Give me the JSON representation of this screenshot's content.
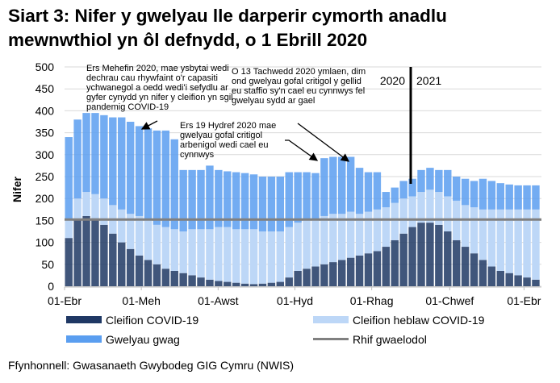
{
  "title": [
    "Siart 3: Nifer y gwelyau lle darperir cymorth anadlu",
    "mewnwthiol yn ôl defnydd, o 1 Ebrill 2020"
  ],
  "source": "Ffynhonnell: Gwasanaeth Gwybodeg GIG Cymru (NWIS)",
  "chart_data": {
    "type": "bar",
    "stacked": true,
    "ylabel": "Nifer",
    "ylim": [
      0,
      500
    ],
    "yticks": [
      0,
      50,
      100,
      150,
      200,
      250,
      300,
      350,
      400,
      450,
      500
    ],
    "grid": true,
    "xtick_labels": [
      {
        "date": "2020-04-01",
        "label": "01-Ebr"
      },
      {
        "date": "2020-06-01",
        "label": "01-Meh"
      },
      {
        "date": "2020-08-01",
        "label": "01-Awst"
      },
      {
        "date": "2020-10-01",
        "label": "01-Hyd"
      },
      {
        "date": "2020-12-01",
        "label": "01-Rhag"
      },
      {
        "date": "2021-02-01",
        "label": "01-Chwef"
      },
      {
        "date": "2021-04-01",
        "label": "01-Ebr"
      }
    ],
    "legend_position": "bottom",
    "series": [
      {
        "name": "Cleifion COVID-19",
        "color": "#1f3864"
      },
      {
        "name": "Cleifion heblaw COVID-19",
        "color": "#bdd7f7"
      },
      {
        "name": "Gwelyau gwag",
        "color": "#5a9ef0"
      }
    ],
    "baseline": {
      "name": "Rhif gwaelodol",
      "value": 152,
      "color": "#808080"
    },
    "year_divider": {
      "date": "2021-01-01",
      "left_label": "2020",
      "right_label": "2021"
    },
    "dates": [
      "2020-04-01",
      "2020-04-08",
      "2020-04-15",
      "2020-04-22",
      "2020-04-29",
      "2020-05-06",
      "2020-05-13",
      "2020-05-20",
      "2020-05-27",
      "2020-06-03",
      "2020-06-10",
      "2020-06-17",
      "2020-06-24",
      "2020-07-01",
      "2020-07-08",
      "2020-07-15",
      "2020-07-22",
      "2020-07-29",
      "2020-08-05",
      "2020-08-12",
      "2020-08-19",
      "2020-08-26",
      "2020-09-02",
      "2020-09-09",
      "2020-09-16",
      "2020-09-23",
      "2020-09-30",
      "2020-10-07",
      "2020-10-14",
      "2020-10-21",
      "2020-10-28",
      "2020-11-04",
      "2020-11-11",
      "2020-11-18",
      "2020-11-25",
      "2020-12-02",
      "2020-12-09",
      "2020-12-16",
      "2020-12-23",
      "2020-12-30",
      "2021-01-06",
      "2021-01-13",
      "2021-01-20",
      "2021-01-27",
      "2021-02-03",
      "2021-02-10",
      "2021-02-17",
      "2021-02-24",
      "2021-03-03",
      "2021-03-10",
      "2021-03-17",
      "2021-03-24",
      "2021-03-31",
      "2021-04-07"
    ],
    "covid": [
      110,
      150,
      160,
      155,
      140,
      120,
      100,
      85,
      70,
      60,
      50,
      40,
      35,
      30,
      25,
      20,
      15,
      12,
      10,
      8,
      6,
      5,
      6,
      8,
      10,
      20,
      35,
      40,
      45,
      50,
      55,
      60,
      65,
      70,
      75,
      80,
      90,
      105,
      120,
      135,
      145,
      145,
      140,
      125,
      105,
      90,
      75,
      60,
      45,
      35,
      30,
      25,
      20,
      15
    ],
    "non_covid": [
      40,
      50,
      55,
      55,
      60,
      65,
      75,
      80,
      90,
      90,
      90,
      95,
      95,
      95,
      105,
      110,
      115,
      123,
      125,
      122,
      124,
      125,
      119,
      117,
      115,
      115,
      110,
      110,
      105,
      110,
      110,
      105,
      105,
      95,
      95,
      95,
      90,
      85,
      80,
      70,
      70,
      75,
      75,
      80,
      90,
      95,
      105,
      115,
      130,
      140,
      145,
      150,
      155,
      160
    ],
    "empty": [
      190,
      180,
      180,
      185,
      190,
      200,
      210,
      210,
      205,
      210,
      215,
      220,
      205,
      140,
      135,
      135,
      145,
      130,
      127,
      130,
      128,
      125,
      125,
      125,
      125,
      125,
      115,
      110,
      108,
      132,
      130,
      130,
      125,
      105,
      90,
      85,
      35,
      35,
      40,
      40,
      50,
      50,
      50,
      60,
      55,
      60,
      60,
      70,
      65,
      60,
      57,
      55,
      55,
      55
    ]
  },
  "annotations": [
    {
      "lines": [
        "Ers Mehefin 2020, mae ysbytai wedi",
        "dechrau cau rhywfaint o'r capasiti",
        "ychwanegol a oedd wedi'i sefydlu ar",
        "gyfer cynydd yn nifer y cleifion yn sgil",
        "pandemig COVID-19"
      ]
    },
    {
      "lines": [
        "O 13 Tachwedd 2020 ymlaen, dim",
        "ond gwelyau gofal critigol y gellid",
        "eu staffio sy'n cael eu cynnwys fel",
        "gwelyau sydd ar gael"
      ]
    },
    {
      "lines": [
        "Ers 19 Hydref 2020 mae",
        "gwelyau gofal critigol",
        "arbenigol wedi cael eu",
        "cynnwys"
      ]
    }
  ]
}
